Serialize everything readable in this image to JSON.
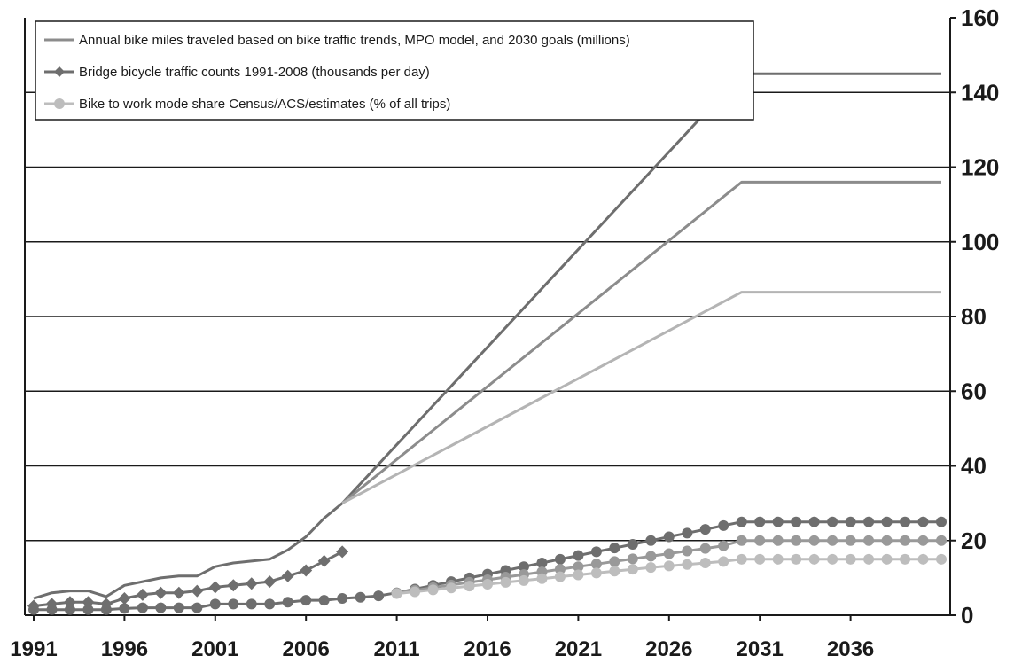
{
  "chart_data": {
    "type": "line",
    "title": "",
    "xlabel": "",
    "ylabel": "",
    "xlim": [
      1991,
      2041
    ],
    "ylim": [
      0,
      160
    ],
    "y_ticks": [
      0,
      20,
      40,
      60,
      80,
      100,
      120,
      140,
      160
    ],
    "y_tick_labels": [
      "0",
      "20",
      "40",
      "60",
      "80",
      "100",
      "120",
      "140",
      "160"
    ],
    "y_axis_side": "right",
    "x_ticks": [
      1991,
      1996,
      2001,
      2006,
      2011,
      2016,
      2021,
      2026,
      2031,
      2036
    ],
    "x_tick_labels": [
      "1991",
      "1996",
      "2001",
      "2006",
      "2011",
      "2016",
      "2021",
      "2026",
      "2031",
      "2036"
    ],
    "grid": "horizontal",
    "legend_position": "top-left",
    "legend": [
      "Annual bike miles traveled based on bike traffic trends, MPO model, and 2030 goals (millions)",
      "Bridge bicycle traffic counts 1991-2008 (thousands per day)",
      "Bike to work mode share Census/ACS/estimates (% of all trips)"
    ],
    "series": [
      {
        "legend_index": 0,
        "color": "#6e6e6e",
        "marker": "none",
        "x": [
          1991,
          1992,
          1993,
          1994,
          1995,
          1996,
          1997,
          1998,
          1999,
          2000,
          2001,
          2002,
          2003,
          2004,
          2005,
          2006,
          2007,
          2008,
          2030,
          2041
        ],
        "values": [
          4.5,
          6,
          6.5,
          6.5,
          5,
          8,
          9,
          10,
          10.5,
          10.5,
          13,
          14,
          14.5,
          15,
          17.5,
          21,
          26,
          30,
          145,
          145
        ]
      },
      {
        "legend_index": null,
        "color": "#8c8c8c",
        "marker": "none",
        "x": [
          2008,
          2030,
          2041
        ],
        "values": [
          30,
          116,
          116
        ]
      },
      {
        "legend_index": null,
        "color": "#b4b4b4",
        "marker": "none",
        "x": [
          2008,
          2030,
          2041
        ],
        "values": [
          30,
          86.5,
          86.5
        ]
      },
      {
        "legend_index": 1,
        "color": "#6e6e6e",
        "marker": "diamond",
        "x": [
          1991,
          1992,
          1993,
          1994,
          1995,
          1996,
          1997,
          1998,
          1999,
          2000,
          2001,
          2002,
          2003,
          2004,
          2005,
          2006,
          2007,
          2008
        ],
        "values": [
          2.5,
          3,
          3.5,
          3.5,
          3,
          4.5,
          5.5,
          6,
          6,
          6.5,
          7.5,
          8,
          8.5,
          9,
          10.5,
          12,
          14.5,
          17
        ]
      },
      {
        "legend_index": 2,
        "color": "#6e6e6e",
        "marker": "circle",
        "x": [
          1991,
          1992,
          1993,
          1994,
          1995,
          1996,
          1997,
          1998,
          1999,
          2000,
          2001,
          2002,
          2003,
          2004,
          2005,
          2006,
          2007,
          2008,
          2009,
          2010,
          2011,
          2012,
          2013,
          2014,
          2015,
          2016,
          2017,
          2018,
          2019,
          2020,
          2021,
          2022,
          2023,
          2024,
          2025,
          2026,
          2027,
          2028,
          2029,
          2030,
          2031,
          2032,
          2033,
          2034,
          2035,
          2036,
          2037,
          2038,
          2039,
          2040,
          2041
        ],
        "values": [
          1.5,
          1.5,
          1.5,
          1.5,
          1.5,
          1.8,
          2,
          2,
          2,
          2,
          3,
          3,
          3,
          3,
          3.5,
          4,
          4,
          4.5,
          4.8,
          5.2,
          6,
          7,
          8,
          9,
          10,
          11,
          12,
          13,
          14,
          15,
          16,
          17,
          18,
          19,
          20,
          21,
          22,
          23,
          24,
          25,
          25,
          25,
          25,
          25,
          25,
          25,
          25,
          25,
          25,
          25,
          25
        ]
      },
      {
        "legend_index": null,
        "color": "#999999",
        "marker": "circle",
        "x": [
          2011,
          2012,
          2013,
          2014,
          2015,
          2016,
          2017,
          2018,
          2019,
          2020,
          2021,
          2022,
          2023,
          2024,
          2025,
          2026,
          2027,
          2028,
          2029,
          2030,
          2031,
          2032,
          2033,
          2034,
          2035,
          2036,
          2037,
          2038,
          2039,
          2040,
          2041
        ],
        "values": [
          6,
          6.7,
          7.4,
          8.1,
          8.8,
          9.5,
          10.2,
          10.9,
          11.6,
          12.3,
          13,
          13.7,
          14.4,
          15.1,
          15.8,
          16.5,
          17.2,
          17.9,
          18.6,
          20,
          20,
          20,
          20,
          20,
          20,
          20,
          20,
          20,
          20,
          20,
          20
        ]
      },
      {
        "legend_index": null,
        "color": "#bdbdbd",
        "marker": "circle",
        "x": [
          2011,
          2012,
          2013,
          2014,
          2015,
          2016,
          2017,
          2018,
          2019,
          2020,
          2021,
          2022,
          2023,
          2024,
          2025,
          2026,
          2027,
          2028,
          2029,
          2030,
          2031,
          2032,
          2033,
          2034,
          2035,
          2036,
          2037,
          2038,
          2039,
          2040,
          2041
        ],
        "values": [
          5.8,
          6.3,
          6.8,
          7.3,
          7.8,
          8.3,
          8.8,
          9.3,
          9.8,
          10.3,
          10.8,
          11.3,
          11.8,
          12.3,
          12.8,
          13.2,
          13.6,
          14,
          14.4,
          15,
          15,
          15,
          15,
          15,
          15,
          15,
          15,
          15,
          15,
          15,
          15
        ]
      }
    ]
  }
}
